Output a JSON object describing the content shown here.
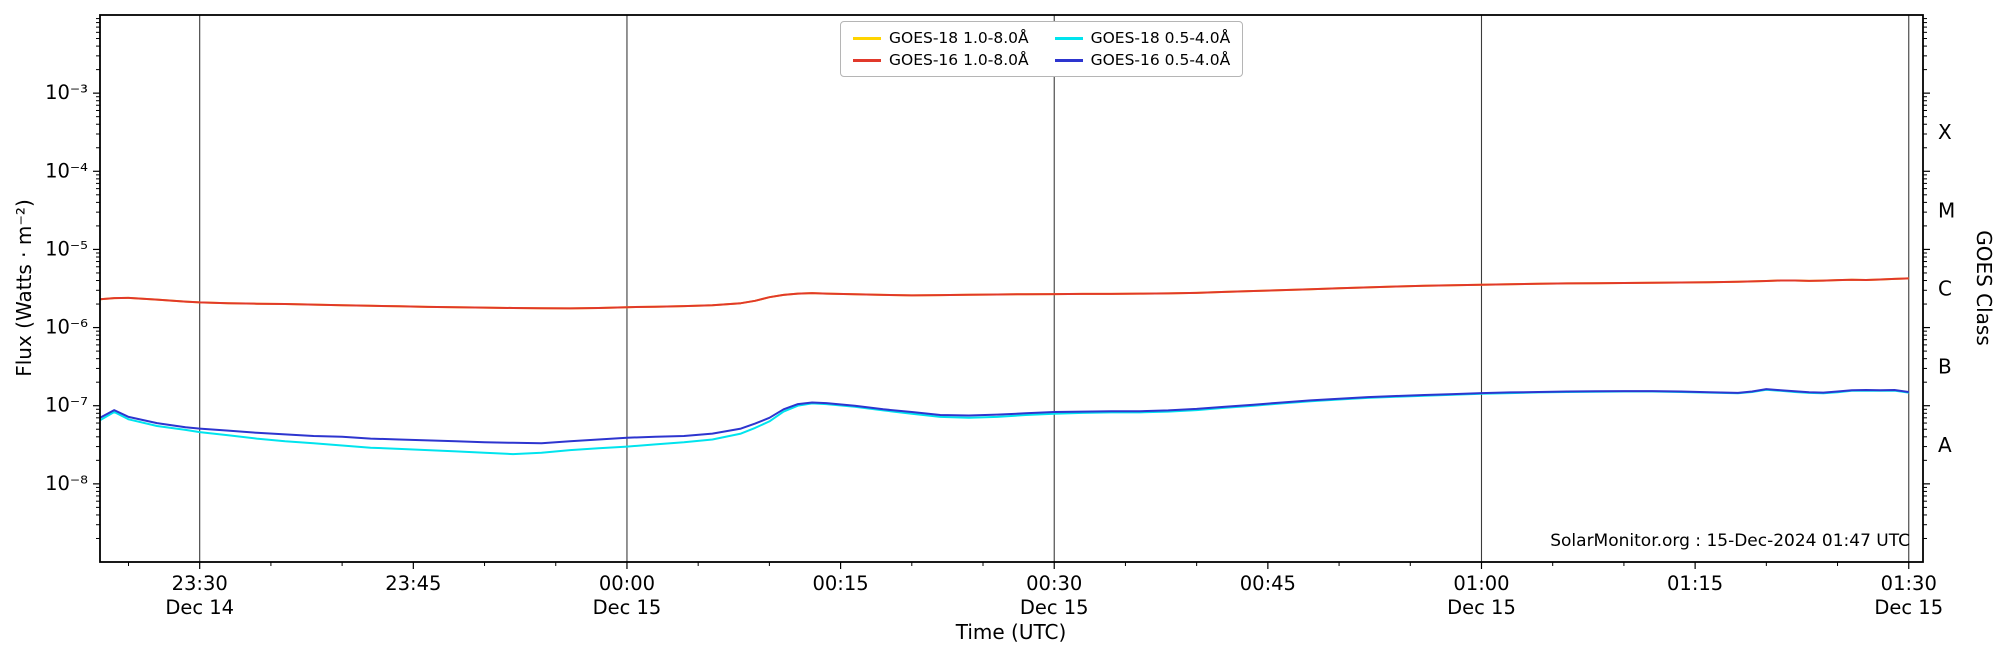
{
  "chart_data": {
    "type": "line",
    "xlabel": "Time (UTC)",
    "ylabel": "Flux (Watts · m⁻²)",
    "ylabel_right": "GOES Class",
    "watermark": "SolarMonitor.org : 15-Dec-2024 01:47 UTC",
    "x_axis": {
      "domain_minutes_from_midnight": [
        -37,
        91
      ],
      "ticks": [
        {
          "t": -30,
          "time": "23:30",
          "date": "Dec 14",
          "line": true
        },
        {
          "t": -15,
          "time": "23:45",
          "date": "",
          "line": false
        },
        {
          "t": 0,
          "time": "00:00",
          "date": "Dec 15",
          "line": true
        },
        {
          "t": 15,
          "time": "00:15",
          "date": "",
          "line": false
        },
        {
          "t": 30,
          "time": "00:30",
          "date": "Dec 15",
          "line": true
        },
        {
          "t": 45,
          "time": "00:45",
          "date": "",
          "line": false
        },
        {
          "t": 60,
          "time": "01:00",
          "date": "Dec 15",
          "line": true
        },
        {
          "t": 75,
          "time": "01:15",
          "date": "",
          "line": false
        },
        {
          "t": 90,
          "time": "01:30",
          "date": "Dec 15",
          "line": true
        }
      ]
    },
    "y_axis": {
      "log10_range": [
        -9,
        -2
      ],
      "ticks": [
        {
          "exp": -3,
          "label": "10⁻³"
        },
        {
          "exp": -4,
          "label": "10⁻⁴"
        },
        {
          "exp": -5,
          "label": "10⁻⁵"
        },
        {
          "exp": -6,
          "label": "10⁻⁶"
        },
        {
          "exp": -7,
          "label": "10⁻⁷"
        },
        {
          "exp": -8,
          "label": "10⁻⁸"
        }
      ]
    },
    "goes_classes": [
      {
        "label": "X",
        "exp": -3.5
      },
      {
        "label": "M",
        "exp": -4.5
      },
      {
        "label": "C",
        "exp": -5.5
      },
      {
        "label": "B",
        "exp": -6.5
      },
      {
        "label": "A",
        "exp": -7.5
      }
    ],
    "x_minutes": [
      -37,
      -36,
      -35,
      -33,
      -31,
      -30,
      -28,
      -26,
      -24,
      -22,
      -20,
      -18,
      -16,
      -14,
      -12,
      -10,
      -8,
      -6,
      -4,
      -2,
      0,
      2,
      4,
      6,
      8,
      9,
      10,
      11,
      12,
      13,
      14,
      16,
      18,
      20,
      22,
      24,
      26,
      28,
      30,
      32,
      34,
      36,
      38,
      40,
      42,
      44,
      46,
      48,
      50,
      52,
      54,
      56,
      58,
      60,
      62,
      64,
      66,
      68,
      70,
      72,
      74,
      76,
      78,
      79,
      80,
      81,
      82,
      83,
      84,
      85,
      86,
      87,
      88,
      89,
      90
    ],
    "series": [
      {
        "name": "GOES-18 1.0-8.0Å",
        "color": "#ffd400",
        "values": [
          2.3e-06,
          2.38e-06,
          2.4e-06,
          2.28e-06,
          2.15e-06,
          2.1e-06,
          2.05e-06,
          2.02e-06,
          2e-06,
          1.97e-06,
          1.93e-06,
          1.9e-06,
          1.87e-06,
          1.84e-06,
          1.82e-06,
          1.8e-06,
          1.78e-06,
          1.77e-06,
          1.76e-06,
          1.78e-06,
          1.82e-06,
          1.85e-06,
          1.88e-06,
          1.93e-06,
          2.05e-06,
          2.2e-06,
          2.45e-06,
          2.62e-06,
          2.72e-06,
          2.76e-06,
          2.72e-06,
          2.67e-06,
          2.62e-06,
          2.58e-06,
          2.6e-06,
          2.63e-06,
          2.65e-06,
          2.67e-06,
          2.68e-06,
          2.7e-06,
          2.7e-06,
          2.72e-06,
          2.74e-06,
          2.78e-06,
          2.86e-06,
          2.94e-06,
          3.02e-06,
          3.1e-06,
          3.18e-06,
          3.27e-06,
          3.35e-06,
          3.42e-06,
          3.48e-06,
          3.54e-06,
          3.59e-06,
          3.63e-06,
          3.67e-06,
          3.7e-06,
          3.72e-06,
          3.74e-06,
          3.77e-06,
          3.8e-06,
          3.86e-06,
          3.9e-06,
          3.95e-06,
          4e-06,
          4e-06,
          3.96e-06,
          3.99e-06,
          4.05e-06,
          4.1e-06,
          4.06e-06,
          4.12e-06,
          4.2e-06,
          4.26e-06
        ]
      },
      {
        "name": "GOES-16 1.0-8.0Å",
        "color": "#e1392b",
        "values": [
          2.3e-06,
          2.38e-06,
          2.4e-06,
          2.28e-06,
          2.15e-06,
          2.1e-06,
          2.05e-06,
          2.02e-06,
          2e-06,
          1.97e-06,
          1.93e-06,
          1.9e-06,
          1.87e-06,
          1.84e-06,
          1.82e-06,
          1.8e-06,
          1.78e-06,
          1.77e-06,
          1.76e-06,
          1.78e-06,
          1.82e-06,
          1.85e-06,
          1.88e-06,
          1.93e-06,
          2.05e-06,
          2.2e-06,
          2.45e-06,
          2.62e-06,
          2.72e-06,
          2.76e-06,
          2.72e-06,
          2.67e-06,
          2.62e-06,
          2.58e-06,
          2.6e-06,
          2.63e-06,
          2.65e-06,
          2.67e-06,
          2.68e-06,
          2.7e-06,
          2.7e-06,
          2.72e-06,
          2.74e-06,
          2.78e-06,
          2.86e-06,
          2.94e-06,
          3.02e-06,
          3.1e-06,
          3.18e-06,
          3.27e-06,
          3.35e-06,
          3.42e-06,
          3.48e-06,
          3.54e-06,
          3.59e-06,
          3.63e-06,
          3.67e-06,
          3.7e-06,
          3.72e-06,
          3.74e-06,
          3.77e-06,
          3.8e-06,
          3.86e-06,
          3.9e-06,
          3.95e-06,
          4e-06,
          4e-06,
          3.96e-06,
          3.99e-06,
          4.05e-06,
          4.1e-06,
          4.06e-06,
          4.12e-06,
          4.2e-06,
          4.26e-06
        ]
      },
      {
        "name": "GOES-18 0.5-4.0Å",
        "color": "#00e4ee",
        "values": [
          6.5e-08,
          8.3e-08,
          6.7e-08,
          5.5e-08,
          4.9e-08,
          4.6e-08,
          4.2e-08,
          3.8e-08,
          3.5e-08,
          3.3e-08,
          3.1e-08,
          2.9e-08,
          2.8e-08,
          2.7e-08,
          2.6e-08,
          2.5e-08,
          2.4e-08,
          2.5e-08,
          2.7e-08,
          2.85e-08,
          3e-08,
          3.2e-08,
          3.4e-08,
          3.7e-08,
          4.4e-08,
          5.2e-08,
          6.3e-08,
          8.4e-08,
          1e-07,
          1.07e-07,
          1.05e-07,
          9.7e-08,
          8.7e-08,
          7.9e-08,
          7.2e-08,
          7e-08,
          7.2e-08,
          7.6e-08,
          7.9e-08,
          8.1e-08,
          8.2e-08,
          8.2e-08,
          8.4e-08,
          8.8e-08,
          9.4e-08,
          1e-07,
          1.07e-07,
          1.14e-07,
          1.2e-07,
          1.26e-07,
          1.3e-07,
          1.34e-07,
          1.38e-07,
          1.42e-07,
          1.45e-07,
          1.48e-07,
          1.5e-07,
          1.51e-07,
          1.52e-07,
          1.52e-07,
          1.5e-07,
          1.47e-07,
          1.44e-07,
          1.5e-07,
          1.6e-07,
          1.55e-07,
          1.5e-07,
          1.46e-07,
          1.44e-07,
          1.49e-07,
          1.55e-07,
          1.56e-07,
          1.55e-07,
          1.56e-07,
          1.47e-07
        ]
      },
      {
        "name": "GOES-16 0.5-4.0Å",
        "color": "#2d35cf",
        "values": [
          7e-08,
          8.8e-08,
          7.2e-08,
          6e-08,
          5.3e-08,
          5.1e-08,
          4.8e-08,
          4.5e-08,
          4.3e-08,
          4.1e-08,
          4e-08,
          3.8e-08,
          3.7e-08,
          3.6e-08,
          3.5e-08,
          3.4e-08,
          3.35e-08,
          3.3e-08,
          3.5e-08,
          3.7e-08,
          3.9e-08,
          4e-08,
          4.1e-08,
          4.4e-08,
          5.1e-08,
          5.9e-08,
          7e-08,
          9e-08,
          1.05e-07,
          1.1e-07,
          1.08e-07,
          1e-07,
          9e-08,
          8.3e-08,
          7.6e-08,
          7.5e-08,
          7.7e-08,
          8e-08,
          8.3e-08,
          8.4e-08,
          8.5e-08,
          8.5e-08,
          8.7e-08,
          9.1e-08,
          9.7e-08,
          1.03e-07,
          1.1e-07,
          1.17e-07,
          1.23e-07,
          1.29e-07,
          1.33e-07,
          1.37e-07,
          1.41e-07,
          1.45e-07,
          1.48e-07,
          1.5e-07,
          1.52e-07,
          1.53e-07,
          1.54e-07,
          1.54e-07,
          1.52e-07,
          1.49e-07,
          1.46e-07,
          1.52e-07,
          1.63e-07,
          1.58e-07,
          1.53e-07,
          1.49e-07,
          1.47e-07,
          1.52e-07,
          1.58e-07,
          1.59e-07,
          1.58e-07,
          1.59e-07,
          1.5e-07
        ]
      }
    ]
  }
}
